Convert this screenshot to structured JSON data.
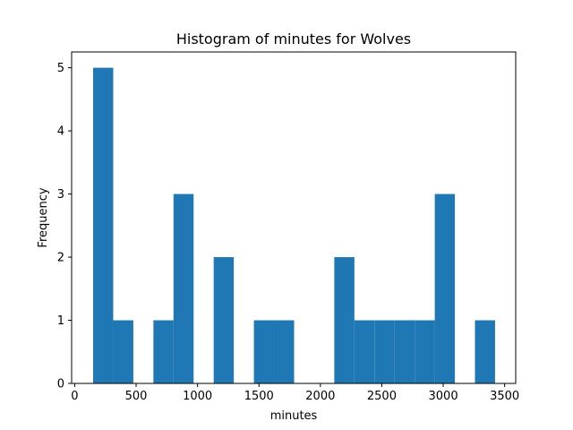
{
  "chart_data": {
    "type": "bar",
    "subtype": "histogram",
    "title": "Histogram of minutes for Wolves",
    "xlabel": "minutes",
    "ylabel": "Frequency",
    "xlim": [
      -25,
      3590
    ],
    "ylim": [
      0,
      5.25
    ],
    "xticks": [
      0,
      500,
      1000,
      1500,
      2000,
      2500,
      3000,
      3500
    ],
    "yticks": [
      0,
      1,
      2,
      3,
      4,
      5
    ],
    "bin_start": 150,
    "bin_width": 163.6,
    "bin_edges": [
      150,
      313.6,
      477.2,
      640.8,
      804.4,
      968,
      1131.6,
      1295.2,
      1458.8,
      1622.4,
      1786,
      1949.6,
      2113.2,
      2276.8,
      2440.4,
      2604,
      2767.6,
      2931.2,
      3094.8,
      3258.4,
      3422
    ],
    "counts": [
      5,
      1,
      0,
      1,
      3,
      0,
      2,
      0,
      1,
      1,
      0,
      0,
      2,
      1,
      1,
      1,
      1,
      3,
      0,
      1
    ],
    "color": "#1f77b4",
    "grid": false
  }
}
